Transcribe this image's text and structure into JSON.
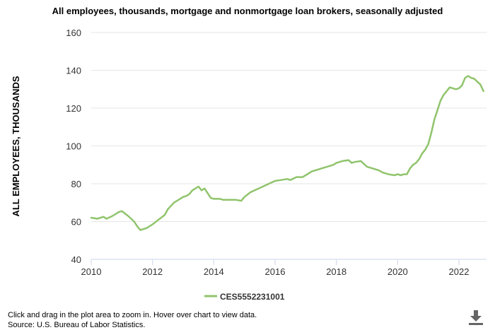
{
  "chart_data": {
    "type": "line",
    "title": "All employees, thousands, mortgage and nonmortgage loan brokers, seasonally adjusted",
    "ylabel": "ALL EMPLOYEES, THOUSANDS",
    "xlabel": "",
    "ylim": [
      40,
      160
    ],
    "yticks": [
      40,
      60,
      80,
      100,
      120,
      140,
      160
    ],
    "xlim": [
      2010,
      2022.9
    ],
    "xticks": [
      2010,
      2012,
      2014,
      2016,
      2018,
      2020,
      2022
    ],
    "grid": true,
    "legend_position": "bottom-center",
    "series": [
      {
        "name": "CES5552231001",
        "color": "#90c46c",
        "x": [
          2010.0,
          2010.2,
          2010.4,
          2010.5,
          2010.7,
          2010.9,
          2011.0,
          2011.2,
          2011.4,
          2011.5,
          2011.6,
          2011.8,
          2012.0,
          2012.2,
          2012.4,
          2012.5,
          2012.7,
          2012.9,
          2013.0,
          2013.1,
          2013.2,
          2013.3,
          2013.5,
          2013.6,
          2013.7,
          2013.9,
          2014.0,
          2014.2,
          2014.3,
          2014.5,
          2014.7,
          2014.9,
          2015.0,
          2015.2,
          2015.4,
          2015.6,
          2015.8,
          2016.0,
          2016.2,
          2016.4,
          2016.5,
          2016.7,
          2016.9,
          2017.0,
          2017.2,
          2017.4,
          2017.5,
          2017.7,
          2017.9,
          2018.0,
          2018.2,
          2018.4,
          2018.5,
          2018.6,
          2018.8,
          2019.0,
          2019.2,
          2019.4,
          2019.5,
          2019.7,
          2019.9,
          2020.0,
          2020.1,
          2020.2,
          2020.3,
          2020.4,
          2020.5,
          2020.6,
          2020.7,
          2020.8,
          2020.9,
          2021.0,
          2021.1,
          2021.2,
          2021.3,
          2021.4,
          2021.5,
          2021.6,
          2021.7,
          2021.8,
          2021.9,
          2022.0,
          2022.1,
          2022.2,
          2022.3,
          2022.4,
          2022.5,
          2022.6,
          2022.7,
          2022.8
        ],
        "values": [
          62,
          61.5,
          62.5,
          61.5,
          63,
          65,
          65.5,
          63,
          60,
          57.5,
          55.5,
          56.5,
          58.5,
          61,
          63.5,
          66.5,
          70,
          72,
          73,
          73.5,
          74.5,
          76.5,
          78.5,
          76.5,
          77.5,
          72.5,
          72,
          72,
          71.5,
          71.5,
          71.5,
          71,
          73,
          75.5,
          77,
          78.5,
          80,
          81.5,
          82,
          82.5,
          82,
          83.5,
          83.5,
          84.5,
          86.5,
          87.5,
          88,
          89,
          90,
          91,
          92,
          92.5,
          91,
          91.5,
          92,
          89,
          88,
          87,
          86,
          85,
          84.5,
          85,
          84.5,
          85,
          85,
          88,
          90,
          91,
          93,
          96,
          98,
          101,
          107,
          114,
          119,
          124,
          127,
          129,
          131,
          130.5,
          130,
          130.5,
          132,
          136,
          137,
          136,
          135.5,
          134,
          132.5,
          129
        ]
      }
    ]
  },
  "legend": {
    "label": "CES5552231001"
  },
  "footer": {
    "line1": "Click and drag in the plot area to zoom in. Hover over chart to view data.",
    "line2": "Source: U.S. Bureau of Labor Statistics."
  },
  "download_icon": "download-icon",
  "colors": {
    "series": "#90c46c",
    "grid": "#e6e6e6",
    "axis": "#ccd6eb"
  }
}
